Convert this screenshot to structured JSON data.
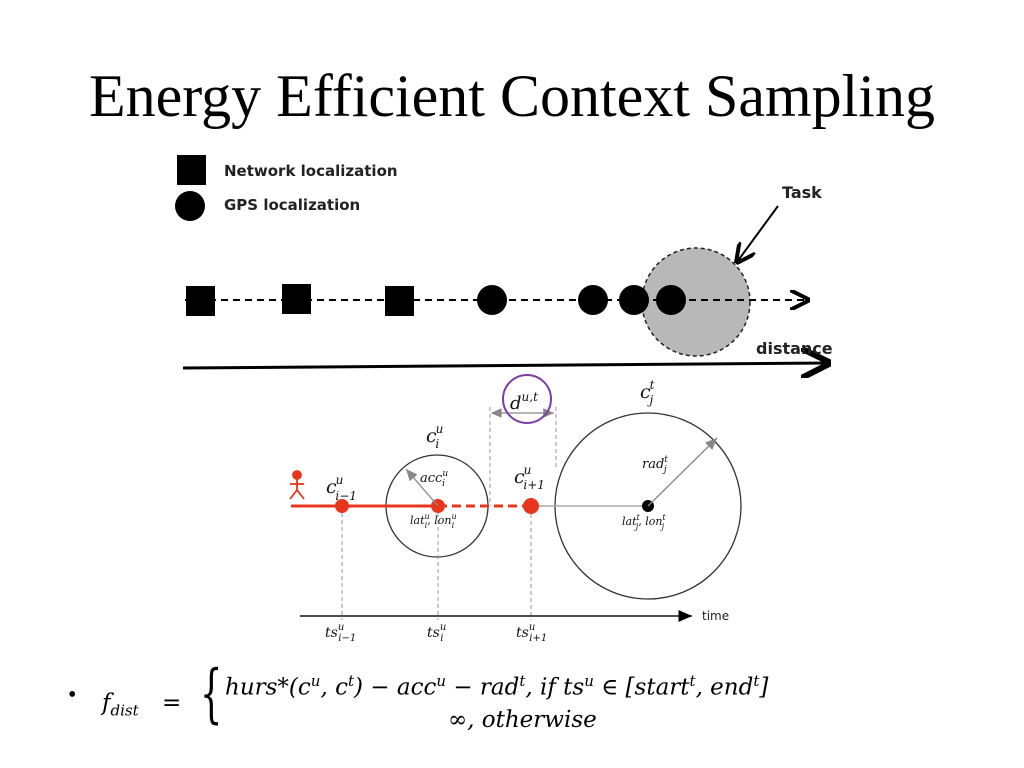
{
  "slide": {
    "title": "Energy Efficient Context Sampling"
  },
  "legend": {
    "network": "Network localization",
    "gps": "GPS localization"
  },
  "top_diagram": {
    "task_label": "Task",
    "distance_label": "distance"
  },
  "bottom_diagram": {
    "time_label": "time",
    "labels": {
      "c_i_minus_1": "c",
      "c_i": "c",
      "c_i_plus_1": "c",
      "c_j": "c",
      "d": "d",
      "acc": "acc",
      "rad": "rad",
      "lat_lon_i": "lat",
      "lat_lon_j": "lat",
      "ts": "ts"
    }
  },
  "formula": {
    "bullet": "•",
    "lhs": "f",
    "lhs_sub": "dist",
    "equals": "=",
    "case1": "hurs*(c",
    "case2": "∞, otherwise"
  },
  "colors": {
    "track_red": "#e8361c",
    "highlight_purple": "#7b3fa0",
    "task_fill": "#b8b8b8",
    "guide_gray": "#9a9a9a"
  }
}
